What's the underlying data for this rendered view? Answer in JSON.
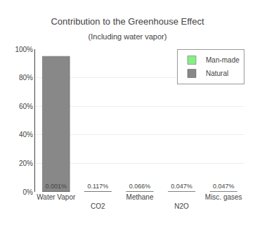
{
  "chart_data": {
    "type": "bar",
    "title": "Contribution to the Greenhouse Effect",
    "subtitle": "(Including water vapor)",
    "categories": [
      "Water Vapor",
      "CO2",
      "Methane",
      "N2O",
      "Misc. gases"
    ],
    "series": [
      {
        "name": "Natural",
        "color": "#888888",
        "values": [
          95.0,
          0.117,
          0.066,
          0.047,
          0.047
        ]
      },
      {
        "name": "Man-made",
        "color": "#88ee88",
        "values": [
          0.001,
          0.117,
          0.066,
          0.047,
          0.047
        ],
        "data_labels": true,
        "value_labels": [
          "0.001%",
          "0.117%",
          "0.066%",
          "0.047%",
          "0.047%"
        ]
      }
    ],
    "ylim": [
      0,
      100
    ],
    "yticks": [
      {
        "value": 0,
        "label": "0%"
      },
      {
        "value": 20,
        "label": "20%"
      },
      {
        "value": 40,
        "label": "40%"
      },
      {
        "value": 60,
        "label": "60%"
      },
      {
        "value": 80,
        "label": "80%"
      },
      {
        "value": 100,
        "label": "100%"
      }
    ],
    "grid": true,
    "legend": "upper right"
  }
}
